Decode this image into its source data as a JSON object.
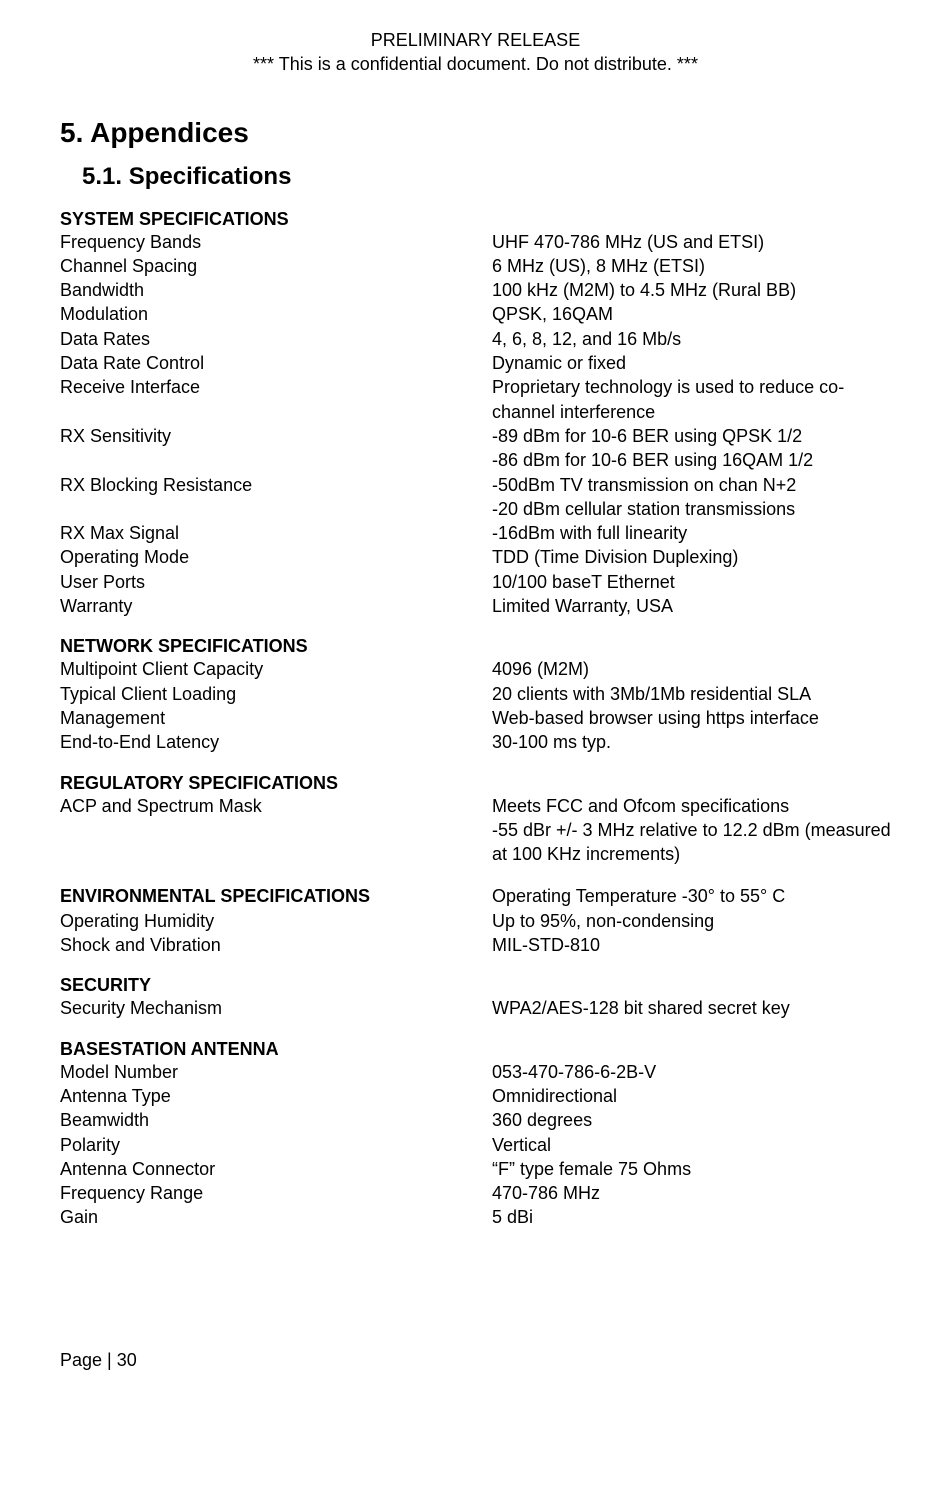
{
  "header": {
    "line1": "PRELIMINARY RELEASE",
    "line2": "*** This is a confidential document. Do not distribute. ***"
  },
  "h1": "5.   Appendices",
  "h2": "5.1.   Specifications",
  "sections": {
    "system": {
      "title": "SYSTEM SPECIFICATIONS",
      "rows": [
        {
          "label": "Frequency Bands",
          "value": "UHF 470-786 MHz (US and ETSI)"
        },
        {
          "label": "Channel Spacing",
          "value": "6 MHz (US), 8 MHz (ETSI)"
        },
        {
          "label": "Bandwidth",
          "value": "100 kHz (M2M) to 4.5 MHz (Rural BB)"
        },
        {
          "label": "Modulation",
          "value": "QPSK, 16QAM"
        },
        {
          "label": "Data Rates",
          "value": "4, 6, 8, 12, and 16 Mb/s"
        },
        {
          "label": "Data Rate Control",
          "value": "Dynamic or fixed"
        },
        {
          "label": "Receive Interface",
          "value": "Proprietary technology is used to reduce co-channel interference"
        },
        {
          "label": "RX Sensitivity",
          "value": "-89 dBm for 10-6 BER using QPSK 1/2\n-86 dBm for 10-6 BER using 16QAM 1/2"
        },
        {
          "label": "RX Blocking Resistance",
          "value": "-50dBm TV transmission on chan N+2\n-20 dBm cellular station transmissions"
        },
        {
          "label": "RX Max Signal",
          "value": "-16dBm with full linearity"
        },
        {
          "label": "Operating Mode",
          "value": "TDD (Time Division Duplexing)"
        },
        {
          "label": "User Ports",
          "value": "10/100 baseT Ethernet"
        },
        {
          "label": "Warranty",
          "value": "Limited Warranty, USA"
        }
      ]
    },
    "network": {
      "title": "NETWORK SPECIFICATIONS",
      "rows": [
        {
          "label": "Multipoint Client Capacity",
          "value": "4096 (M2M)"
        },
        {
          "label": "Typical Client Loading",
          "value": "20 clients with 3Mb/1Mb residential SLA"
        },
        {
          "label": "Management",
          "value": "Web-based browser using https interface"
        },
        {
          "label": "End-to-End Latency",
          "value": "30-100 ms typ."
        }
      ]
    },
    "regulatory": {
      "title": "REGULATORY SPECIFICATIONS",
      "rows": [
        {
          "label": "ACP and Spectrum Mask",
          "value": "Meets FCC and Ofcom specifications\n-55 dBr +/- 3 MHz relative to 12.2 dBm (measured at 100 KHz increments)"
        }
      ]
    },
    "environmental": {
      "title": "ENVIRONMENTAL SPECIFICATIONS",
      "title_value": "Operating Temperature -30° to 55° C",
      "rows": [
        {
          "label": "Operating Humidity",
          "value": "Up to 95%, non-condensing"
        },
        {
          "label": "Shock and Vibration",
          "value": "MIL-STD-810"
        }
      ]
    },
    "security": {
      "title": "SECURITY",
      "rows": [
        {
          "label": "Security Mechanism",
          "value": "WPA2/AES-128 bit shared secret key"
        }
      ]
    },
    "antenna": {
      "title": "BASESTATION ANTENNA",
      "rows": [
        {
          "label": "Model Number",
          "value": "053-470-786-6-2B-V"
        },
        {
          "label": "Antenna Type",
          "value": "Omnidirectional"
        },
        {
          "label": "Beamwidth",
          "value": "360 degrees"
        },
        {
          "label": "Polarity",
          "value": "Vertical"
        },
        {
          "label": "Antenna Connector",
          "value": "“F” type female 75 Ohms"
        },
        {
          "label": "Frequency Range",
          "value": "470-786 MHz"
        },
        {
          "label": "Gain",
          "value": "5 dBi"
        }
      ]
    }
  },
  "footer": "Page | 30"
}
